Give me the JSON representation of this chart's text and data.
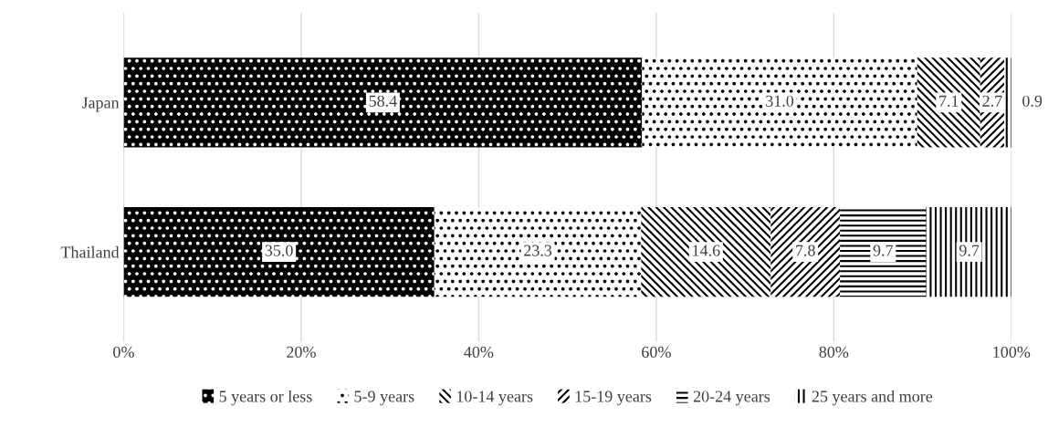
{
  "chart_data": {
    "type": "bar",
    "orientation": "horizontal",
    "stacked": true,
    "categories": [
      "Japan",
      "Thailand"
    ],
    "series": [
      {
        "name": "5 years or less",
        "color": "#000000",
        "values": [
          58.4,
          35.0
        ],
        "value_labels": [
          "58.4",
          "35.0"
        ]
      },
      {
        "name": "5-9 years",
        "color": "#ffffff",
        "values": [
          31.0,
          23.3
        ],
        "value_labels": [
          "31.0",
          "23.3"
        ]
      },
      {
        "name": "10-14 years",
        "color": "#ffffff",
        "values": [
          7.1,
          14.6
        ],
        "value_labels": [
          "7.1",
          "14.6"
        ]
      },
      {
        "name": "15-19 years",
        "color": "#ffffff",
        "values": [
          2.7,
          7.8
        ],
        "value_labels": [
          "2.7",
          "7.8"
        ]
      },
      {
        "name": "20-24 years",
        "color": "#ffffff",
        "values": [
          null,
          9.7
        ],
        "value_labels": [
          null,
          "9.7"
        ]
      },
      {
        "name": "25 years and more",
        "color": "#ffffff",
        "values": [
          0.9,
          9.7
        ],
        "value_labels": [
          "0.9",
          "9.7"
        ]
      }
    ],
    "xlim": [
      0,
      100
    ],
    "xticks": [
      {
        "value": 0,
        "label": "0%"
      },
      {
        "value": 20,
        "label": "20%"
      },
      {
        "value": 40,
        "label": "40%"
      },
      {
        "value": 60,
        "label": "60%"
      },
      {
        "value": 80,
        "label": "80%"
      },
      {
        "value": 100,
        "label": "100%"
      }
    ],
    "grid": "x",
    "legend": "bottom"
  }
}
